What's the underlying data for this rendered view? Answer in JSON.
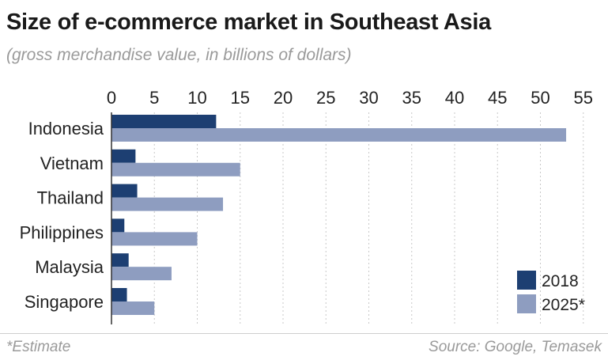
{
  "title": "Size of e-commerce market in Southeast Asia",
  "subtitle": "(gross merchandise value, in billions of dollars)",
  "footnote": "*Estimate",
  "source": "Source: Google, Temasek",
  "colors": {
    "s2018": "#1d3f72",
    "s2025": "#8e9dc0",
    "grid": "#c8c8c8",
    "axis": "#333333"
  },
  "chart_data": {
    "type": "bar",
    "orientation": "horizontal",
    "categories": [
      "Indonesia",
      "Vietnam",
      "Thailand",
      "Philippines",
      "Malaysia",
      "Singapore"
    ],
    "series": [
      {
        "name": "2018",
        "values": [
          12.2,
          2.8,
          3.0,
          1.5,
          2.0,
          1.8
        ]
      },
      {
        "name": "2025*",
        "values": [
          53,
          15,
          13,
          10,
          7,
          5
        ]
      }
    ],
    "xticks": [
      0,
      5,
      10,
      15,
      20,
      25,
      30,
      35,
      40,
      45,
      50,
      55
    ],
    "xlim": [
      0,
      55
    ],
    "grid": true,
    "legend_position": "bottom-right"
  }
}
